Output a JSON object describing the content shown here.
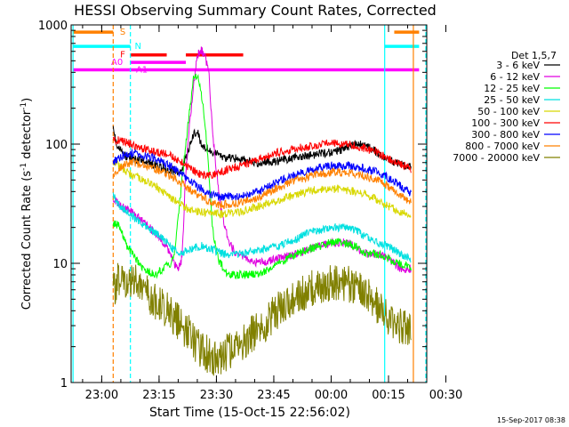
{
  "chart_data": {
    "type": "line",
    "title": "HESSI Observing Summary Count Rates, Corrected",
    "xlabel": "Start Time (15-Oct-15 22:56:02)",
    "ylabel_main": "Corrected Count Rate (s",
    "ylabel_sup1": "-1",
    "ylabel_mid": " detector",
    "ylabel_sup2": "-1",
    "ylabel_end": ")",
    "timestamp": "15-Sep-2017 08:38",
    "x_unit": "minutes since 22:56:02",
    "xlim": [
      -4,
      89
    ],
    "ylim": [
      1,
      1000
    ],
    "y_scale": "log",
    "x_ticks": [
      {
        "label": "23:00",
        "value": 4
      },
      {
        "label": "23:15",
        "value": 19
      },
      {
        "label": "23:30",
        "value": 34
      },
      {
        "label": "23:45",
        "value": 49
      },
      {
        "label": "00:00",
        "value": 64
      },
      {
        "label": "00:15",
        "value": 79
      },
      {
        "label": "00:30",
        "value": 94
      }
    ],
    "y_ticks": [
      {
        "label": "1",
        "value": 1
      },
      {
        "label": "10",
        "value": 10
      },
      {
        "label": "100",
        "value": 100
      },
      {
        "label": "1000",
        "value": 1000
      }
    ],
    "legend": {
      "title": "Det 1,5,7",
      "placement": "right"
    },
    "series": [
      {
        "name": "3 - 6 keV",
        "color": "#000000",
        "points": [
          [
            7,
            140
          ],
          [
            8,
            100
          ],
          [
            10,
            80
          ],
          [
            15,
            72
          ],
          [
            19,
            65
          ],
          [
            24,
            58
          ],
          [
            25,
            60
          ],
          [
            28,
            120
          ],
          [
            29,
            130
          ],
          [
            30,
            100
          ],
          [
            33,
            85
          ],
          [
            36,
            78
          ],
          [
            40,
            75
          ],
          [
            45,
            70
          ],
          [
            50,
            72
          ],
          [
            55,
            78
          ],
          [
            58,
            80
          ],
          [
            61,
            83
          ],
          [
            64,
            85
          ],
          [
            67,
            90
          ],
          [
            70,
            100
          ],
          [
            73,
            98
          ],
          [
            76,
            85
          ],
          [
            79,
            75
          ],
          [
            82,
            68
          ],
          [
            85,
            65
          ]
        ]
      },
      {
        "name": "6 - 12 keV",
        "color": "#e000e0",
        "points": [
          [
            7,
            35
          ],
          [
            9,
            30
          ],
          [
            12,
            27
          ],
          [
            15,
            22
          ],
          [
            18,
            18
          ],
          [
            21,
            14
          ],
          [
            23,
            10
          ],
          [
            24,
            9
          ],
          [
            25,
            11
          ],
          [
            26,
            60
          ],
          [
            27,
            150
          ],
          [
            28,
            300
          ],
          [
            29,
            550
          ],
          [
            30,
            620
          ],
          [
            31,
            550
          ],
          [
            32,
            400
          ],
          [
            33,
            120
          ],
          [
            35,
            30
          ],
          [
            37,
            16
          ],
          [
            39,
            12
          ],
          [
            42,
            11
          ],
          [
            45,
            10
          ],
          [
            50,
            11
          ],
          [
            55,
            12
          ],
          [
            58,
            13
          ],
          [
            61,
            14
          ],
          [
            64,
            15
          ],
          [
            67,
            15
          ],
          [
            70,
            14
          ],
          [
            73,
            12
          ],
          [
            76,
            12
          ],
          [
            79,
            11
          ],
          [
            82,
            9
          ],
          [
            85,
            9
          ]
        ]
      },
      {
        "name": "12 - 25 keV",
        "color": "#00ff00",
        "points": [
          [
            7,
            22
          ],
          [
            9,
            20
          ],
          [
            10,
            15
          ],
          [
            12,
            12
          ],
          [
            15,
            9
          ],
          [
            18,
            8
          ],
          [
            20,
            9
          ],
          [
            22,
            10
          ],
          [
            23,
            12
          ],
          [
            25,
            50
          ],
          [
            27,
            200
          ],
          [
            28,
            350
          ],
          [
            29,
            380
          ],
          [
            30,
            280
          ],
          [
            31,
            150
          ],
          [
            32,
            60
          ],
          [
            33,
            20
          ],
          [
            34,
            12
          ],
          [
            35,
            10
          ],
          [
            37,
            8
          ],
          [
            40,
            8
          ],
          [
            45,
            8
          ],
          [
            50,
            10
          ],
          [
            55,
            12
          ],
          [
            58,
            13
          ],
          [
            61,
            14
          ],
          [
            64,
            15
          ],
          [
            67,
            15
          ],
          [
            70,
            14
          ],
          [
            73,
            12
          ],
          [
            76,
            12
          ],
          [
            79,
            11
          ],
          [
            82,
            10
          ],
          [
            85,
            9
          ]
        ]
      },
      {
        "name": "25 - 50 keV",
        "color": "#00e0e0",
        "points": [
          [
            7,
            38
          ],
          [
            8,
            32
          ],
          [
            10,
            28
          ],
          [
            12,
            25
          ],
          [
            14,
            22
          ],
          [
            17,
            19
          ],
          [
            20,
            16
          ],
          [
            24,
            12
          ],
          [
            27,
            13
          ],
          [
            30,
            14
          ],
          [
            33,
            13
          ],
          [
            36,
            12
          ],
          [
            40,
            12
          ],
          [
            45,
            13
          ],
          [
            50,
            14
          ],
          [
            55,
            16
          ],
          [
            58,
            18
          ],
          [
            61,
            19
          ],
          [
            64,
            20
          ],
          [
            67,
            20
          ],
          [
            70,
            19
          ],
          [
            73,
            17
          ],
          [
            76,
            15
          ],
          [
            79,
            14
          ],
          [
            82,
            12
          ],
          [
            85,
            11
          ]
        ]
      },
      {
        "name": "50 - 100 keV",
        "color": "#d8d800",
        "points": [
          [
            7,
            72
          ],
          [
            8,
            68
          ],
          [
            10,
            60
          ],
          [
            12,
            55
          ],
          [
            15,
            50
          ],
          [
            18,
            45
          ],
          [
            21,
            38
          ],
          [
            24,
            32
          ],
          [
            27,
            28
          ],
          [
            30,
            27
          ],
          [
            33,
            26
          ],
          [
            36,
            26
          ],
          [
            40,
            27
          ],
          [
            45,
            30
          ],
          [
            50,
            34
          ],
          [
            55,
            38
          ],
          [
            58,
            40
          ],
          [
            61,
            42
          ],
          [
            64,
            42
          ],
          [
            67,
            42
          ],
          [
            70,
            40
          ],
          [
            73,
            38
          ],
          [
            76,
            34
          ],
          [
            79,
            30
          ],
          [
            82,
            27
          ],
          [
            85,
            25
          ]
        ]
      },
      {
        "name": "100 - 300 keV",
        "color": "#ff0000",
        "points": [
          [
            7,
            110
          ],
          [
            10,
            105
          ],
          [
            13,
            95
          ],
          [
            16,
            90
          ],
          [
            19,
            85
          ],
          [
            22,
            80
          ],
          [
            25,
            70
          ],
          [
            28,
            60
          ],
          [
            30,
            55
          ],
          [
            33,
            55
          ],
          [
            36,
            60
          ],
          [
            40,
            65
          ],
          [
            45,
            75
          ],
          [
            50,
            85
          ],
          [
            55,
            92
          ],
          [
            58,
            95
          ],
          [
            61,
            100
          ],
          [
            64,
            102
          ],
          [
            67,
            100
          ],
          [
            70,
            98
          ],
          [
            73,
            92
          ],
          [
            76,
            85
          ],
          [
            79,
            75
          ],
          [
            82,
            68
          ],
          [
            85,
            62
          ]
        ]
      },
      {
        "name": "300 - 800 keV",
        "color": "#0000ff",
        "points": [
          [
            7,
            70
          ],
          [
            10,
            82
          ],
          [
            12,
            84
          ],
          [
            14,
            82
          ],
          [
            17,
            78
          ],
          [
            20,
            70
          ],
          [
            23,
            62
          ],
          [
            26,
            52
          ],
          [
            29,
            44
          ],
          [
            32,
            38
          ],
          [
            35,
            36
          ],
          [
            40,
            36
          ],
          [
            45,
            40
          ],
          [
            50,
            48
          ],
          [
            55,
            56
          ],
          [
            58,
            60
          ],
          [
            61,
            64
          ],
          [
            64,
            66
          ],
          [
            67,
            66
          ],
          [
            70,
            65
          ],
          [
            73,
            62
          ],
          [
            76,
            58
          ],
          [
            79,
            52
          ],
          [
            82,
            45
          ],
          [
            85,
            38
          ]
        ]
      },
      {
        "name": "800 - 7000 keV",
        "color": "#ff8000",
        "points": [
          [
            7,
            55
          ],
          [
            10,
            68
          ],
          [
            12,
            70
          ],
          [
            14,
            68
          ],
          [
            17,
            64
          ],
          [
            20,
            58
          ],
          [
            23,
            52
          ],
          [
            26,
            44
          ],
          [
            29,
            38
          ],
          [
            32,
            33
          ],
          [
            35,
            31
          ],
          [
            40,
            32
          ],
          [
            45,
            36
          ],
          [
            50,
            43
          ],
          [
            55,
            50
          ],
          [
            58,
            53
          ],
          [
            61,
            56
          ],
          [
            64,
            58
          ],
          [
            67,
            58
          ],
          [
            70,
            57
          ],
          [
            73,
            54
          ],
          [
            76,
            50
          ],
          [
            79,
            44
          ],
          [
            82,
            38
          ],
          [
            85,
            32
          ]
        ]
      },
      {
        "name": "7000 - 20000 keV",
        "color": "#808000",
        "points": [
          [
            7,
            6
          ],
          [
            9,
            8
          ],
          [
            11,
            7
          ],
          [
            13,
            8
          ],
          [
            15,
            6
          ],
          [
            17,
            5
          ],
          [
            19,
            4.5
          ],
          [
            21,
            4
          ],
          [
            23,
            3.5
          ],
          [
            25,
            3
          ],
          [
            27,
            2.5
          ],
          [
            29,
            2
          ],
          [
            31,
            1.8
          ],
          [
            33,
            1.6
          ],
          [
            35,
            1.6
          ],
          [
            37,
            1.8
          ],
          [
            40,
            2
          ],
          [
            43,
            2.5
          ],
          [
            46,
            3
          ],
          [
            50,
            4
          ],
          [
            54,
            5
          ],
          [
            58,
            6
          ],
          [
            61,
            6.5
          ],
          [
            64,
            7
          ],
          [
            67,
            7
          ],
          [
            70,
            6.5
          ],
          [
            73,
            5.5
          ],
          [
            76,
            4.5
          ],
          [
            79,
            3.5
          ],
          [
            82,
            3
          ],
          [
            85,
            2.5
          ]
        ]
      }
    ],
    "indicator_bars": [
      {
        "label": "S",
        "color": "#ff8000",
        "y": 870,
        "x_start": -3.5,
        "x_end": 7,
        "label_x": 9.5
      },
      {
        "label": "",
        "color": "#ff8000",
        "y": 870,
        "x_start": 80.5,
        "x_end": 87,
        "label_x": null
      },
      {
        "label": "N",
        "color": "#00ffff",
        "y": 660,
        "x_start": -3.5,
        "x_end": 11.5,
        "label_x": 13.5
      },
      {
        "label": "",
        "color": "#00ffff",
        "y": 660,
        "x_start": 78,
        "x_end": 87,
        "label_x": null
      },
      {
        "label": "F",
        "color": "#ff0000",
        "y": 560,
        "x_start": 11.5,
        "x_end": 21,
        "label_x": 9.5
      },
      {
        "label": "",
        "color": "#ff0000",
        "y": 560,
        "x_start": 26,
        "x_end": 41,
        "label_x": null
      },
      {
        "label": "A0",
        "color": "#ff00ff",
        "y": 485,
        "x_start": 11.5,
        "x_end": 26,
        "label_x": 8
      },
      {
        "label": "A1",
        "color": "#ff00ff",
        "y": 420,
        "x_start": -3.5,
        "x_end": 87,
        "label_x": 14.5
      }
    ],
    "vertical_markers": [
      {
        "color": "#00ffff",
        "style": "solid",
        "x": -3.5
      },
      {
        "color": "#ff8000",
        "style": "dashed",
        "x": 7
      },
      {
        "color": "#00ffff",
        "style": "dashed",
        "x": 11.5
      },
      {
        "color": "#00ffff",
        "style": "solid",
        "x": 78
      },
      {
        "color": "#ff8000",
        "style": "solid",
        "x": 85.5
      },
      {
        "color": "#00ffff",
        "style": "dashed",
        "x": 92.5
      }
    ]
  }
}
